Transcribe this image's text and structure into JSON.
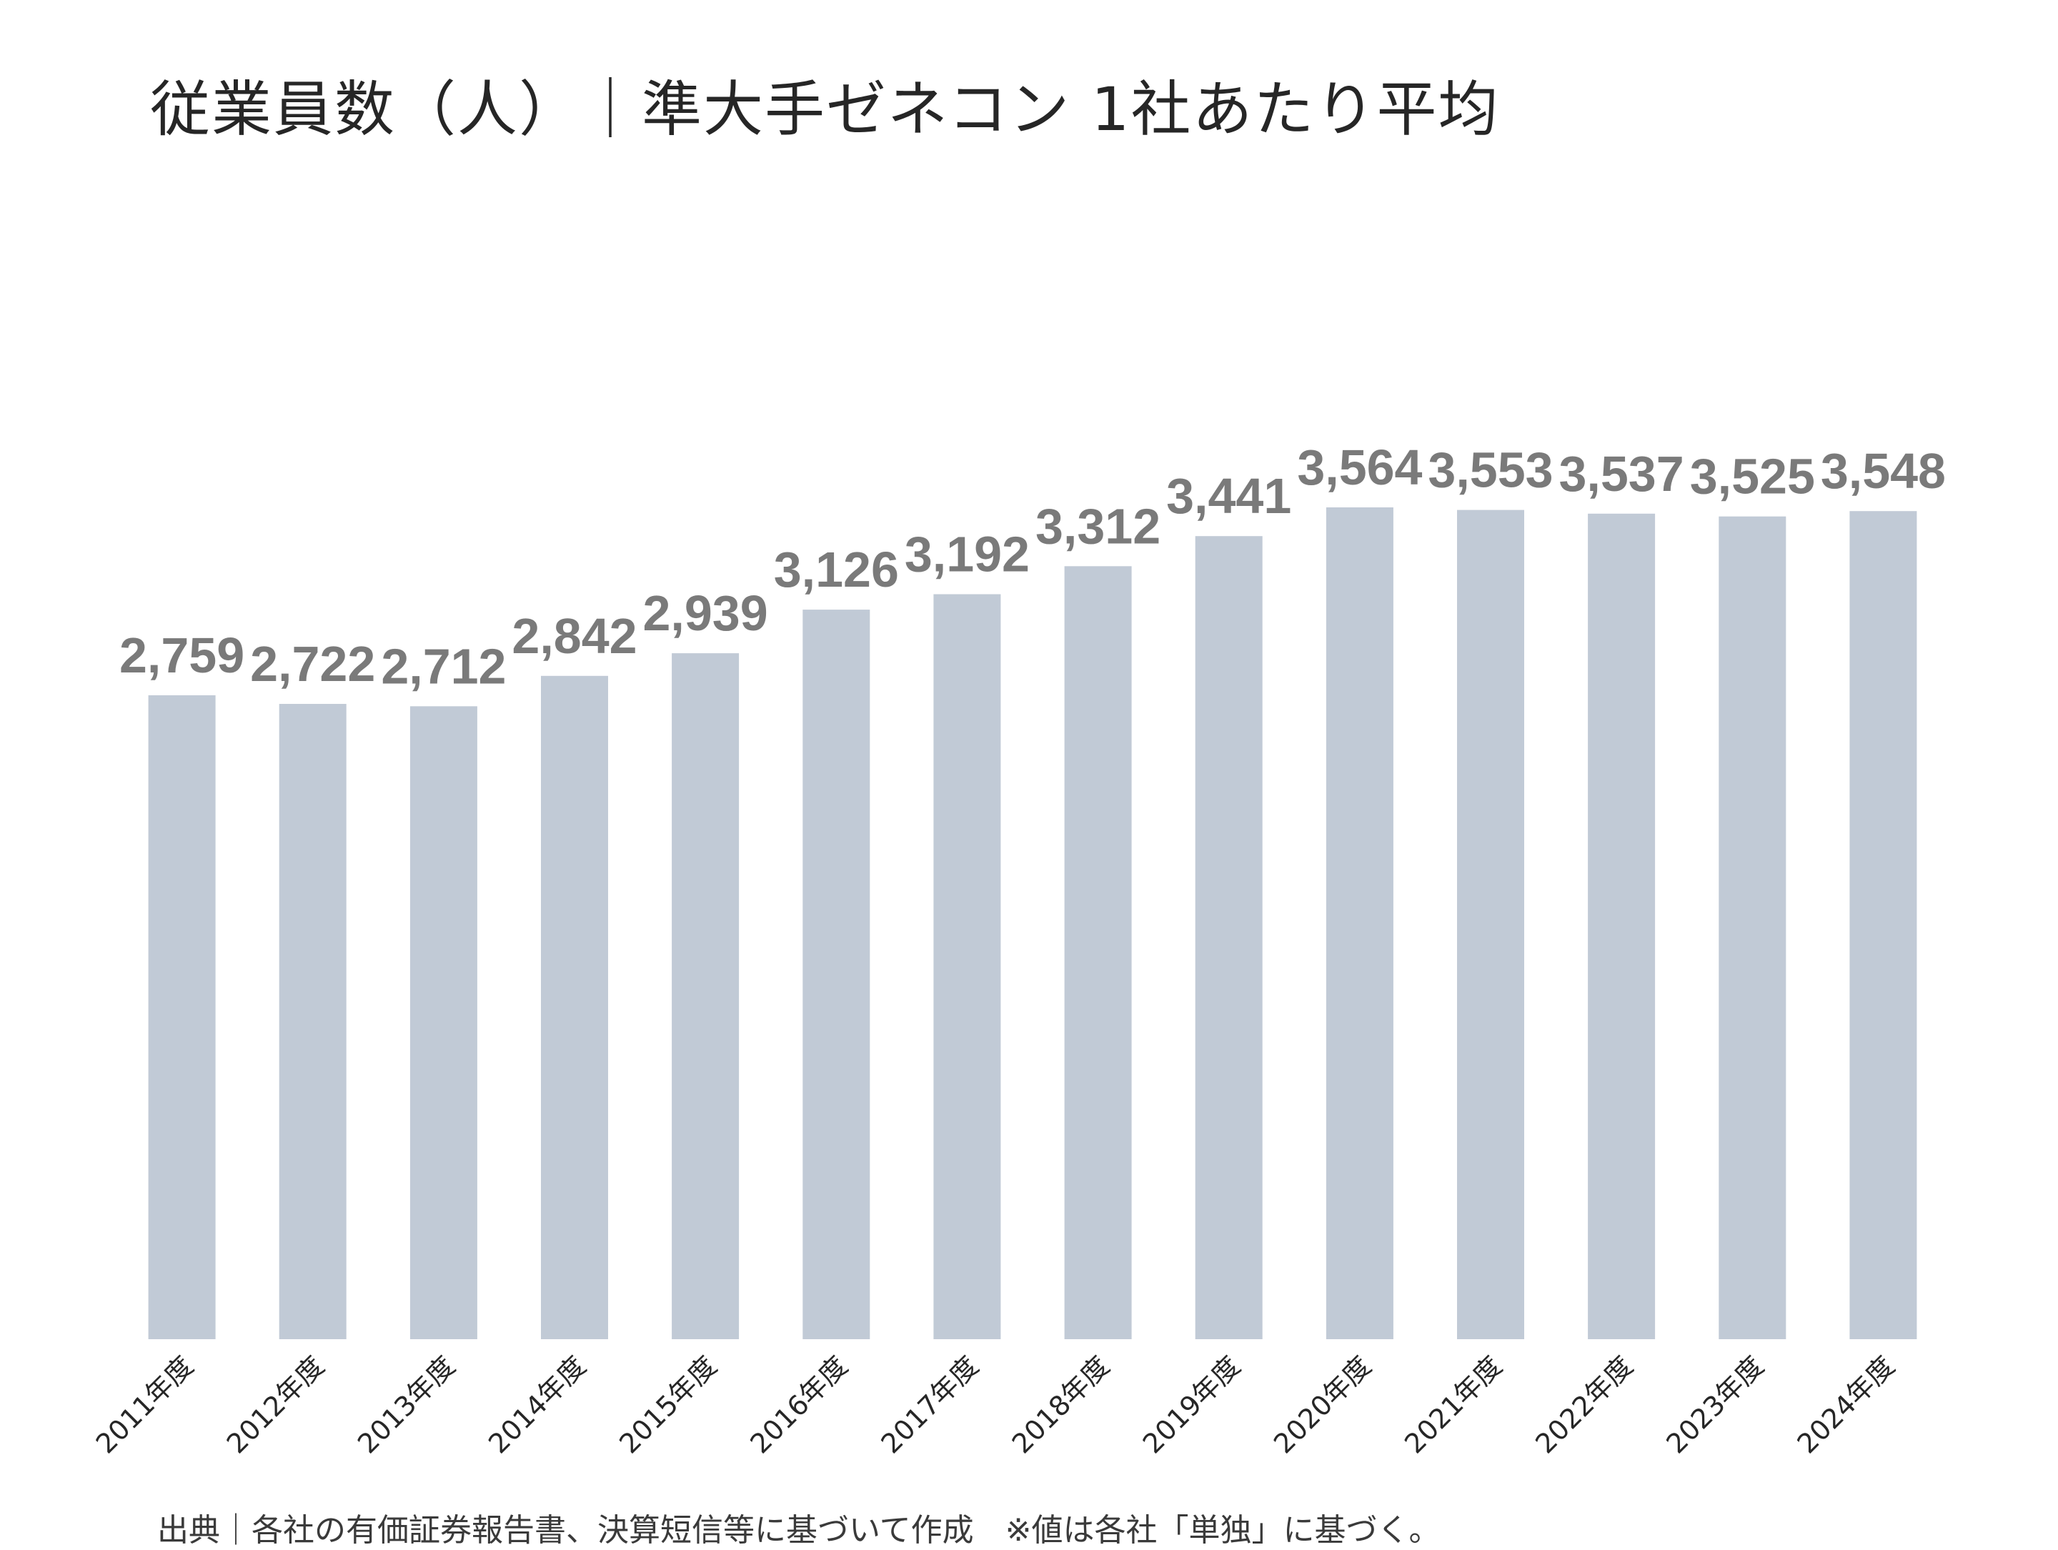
{
  "chart_data": {
    "type": "bar",
    "title": "従業員数（人）｜準大手ゼネコン 1社あたり平均",
    "categories": [
      "2011年度",
      "2012年度",
      "2013年度",
      "2014年度",
      "2015年度",
      "2016年度",
      "2017年度",
      "2018年度",
      "2019年度",
      "2020年度",
      "2021年度",
      "2022年度",
      "2023年度",
      "2024年度"
    ],
    "values": [
      2759,
      2722,
      2712,
      2842,
      2939,
      3126,
      3192,
      3312,
      3441,
      3564,
      3553,
      3537,
      3525,
      3548
    ],
    "data_labels": [
      "2,759",
      "2,722",
      "2,712",
      "2,842",
      "2,939",
      "3,126",
      "3,192",
      "3,312",
      "3,441",
      "3,564",
      "3,553",
      "3,537",
      "3,525",
      "3,548"
    ],
    "ylim": [
      0,
      3700
    ],
    "grid": false,
    "legend": "none",
    "bar_color": "#c1cad6",
    "label_color": "#7a7a7a"
  },
  "note": "出典｜各社の有価証券報告書、決算短信等に基づいて作成　※値は各社「単独」に基づく。"
}
